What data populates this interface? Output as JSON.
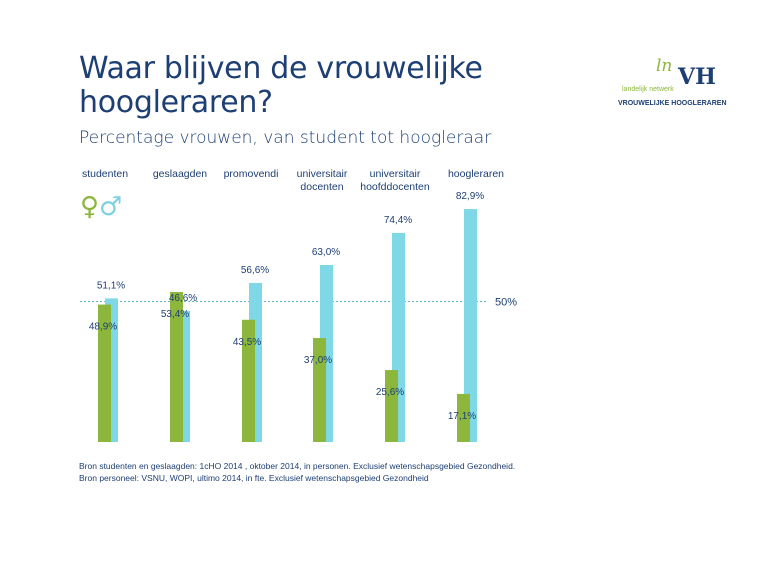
{
  "header": {
    "title": "Waar blijven de vrouwelijke hoogleraren?",
    "subtitle": "Percentage vrouwen, van student tot hoogleraar"
  },
  "logo": {
    "mark": "lnVH",
    "network_text": "landelijk netwerk",
    "name_text": "VROUWELIJKE HOOGLERAREN"
  },
  "legend_icons": {
    "female_glyph": "♀",
    "male_glyph": "♂"
  },
  "chart_data": {
    "type": "bar",
    "categories": [
      [
        "studenten"
      ],
      [
        "geslaagden"
      ],
      [
        "promovendi"
      ],
      [
        "universitair",
        "docenten"
      ],
      [
        "universitair",
        "hoofddocenten"
      ],
      [
        "hoogleraren"
      ]
    ],
    "series": [
      {
        "color": "#8cb63c",
        "values": [
          48.9,
          53.4,
          43.5,
          37.0,
          25.6,
          17.1
        ],
        "labels": [
          "48,9%",
          "53,4%",
          "43,5%",
          "37,0%",
          "25,6%",
          "17,1%"
        ]
      },
      {
        "color": "#7fd8e6",
        "values": [
          51.1,
          46.6,
          56.6,
          63.0,
          74.4,
          82.9
        ],
        "labels": [
          "51,1%",
          "46,6%",
          "56,6%",
          "63,0%",
          "74,4%",
          "82,9%"
        ]
      }
    ],
    "reference_line": {
      "value": 50,
      "label": "50%"
    },
    "ylim": [
      0,
      100
    ],
    "grid": false
  },
  "sources": [
    "Bron studenten en geslaagden: 1cHO 2014 , oktober 2014, in personen. Exclusief wetenschapsgebied Gezondheid.",
    "Bron personeel: VSNU, WOPI, ultimo 2014, in fte. Exclusief wetenschapsgebied Gezondheid"
  ]
}
